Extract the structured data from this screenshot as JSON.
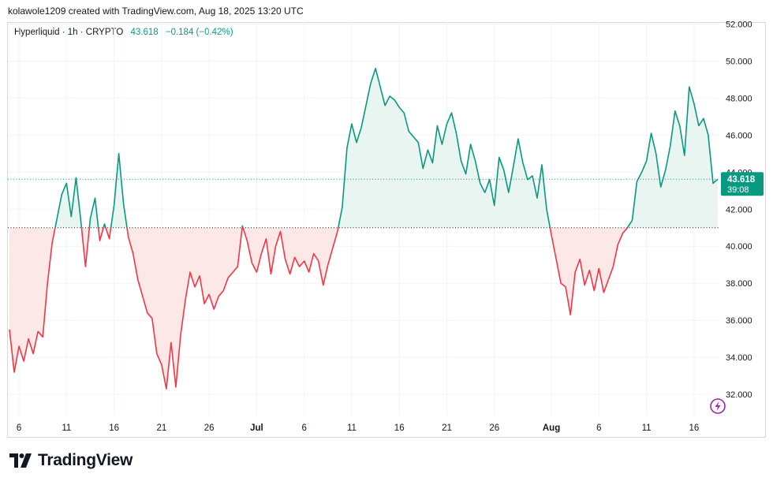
{
  "header": {
    "attribution": "kolawole1209 created with TradingView.com, Aug 18, 2025 13:20 UTC"
  },
  "legend": {
    "symbol": "Hyperliquid · 1h · CRYPTO",
    "price": "43.618",
    "change": "−0.184 (−0.42%)"
  },
  "last_price_tag": {
    "price": "43.618",
    "countdown": "39:08"
  },
  "brand": {
    "name": "TradingView"
  },
  "colors": {
    "up": "#089981",
    "down": "#f23645",
    "up_fill": "#e8f5f0",
    "down_fill": "#fde8e8"
  },
  "chart_data": {
    "type": "area",
    "title": "",
    "series_name": "",
    "baseline_value": 41.0,
    "last_value": 43.618,
    "ylim": [
      30.9,
      52.1
    ],
    "y_ticks": [
      32,
      34,
      36,
      38,
      40,
      42,
      44,
      46,
      48,
      50,
      52
    ],
    "y_tick_labels": [
      "32.000",
      "34.000",
      "36.000",
      "38.000",
      "40.000",
      "42.000",
      "44.000",
      "46.000",
      "48.000",
      "50.000",
      "52.000"
    ],
    "x_ticks": [
      {
        "label": "6",
        "bold": false
      },
      {
        "label": "11",
        "bold": false
      },
      {
        "label": "16",
        "bold": false
      },
      {
        "label": "21",
        "bold": false
      },
      {
        "label": "26",
        "bold": false
      },
      {
        "label": "Jul",
        "bold": true
      },
      {
        "label": "6",
        "bold": false
      },
      {
        "label": "11",
        "bold": false
      },
      {
        "label": "16",
        "bold": false
      },
      {
        "label": "21",
        "bold": false
      },
      {
        "label": "26",
        "bold": false
      },
      {
        "label": "Aug",
        "bold": true
      },
      {
        "label": "6",
        "bold": false
      },
      {
        "label": "11",
        "bold": false
      },
      {
        "label": "16",
        "bold": false
      }
    ],
    "x_range_days": [
      "Jun 5",
      "Aug 18"
    ],
    "points": [
      [
        "Jun 5 00:00",
        35.5
      ],
      [
        "Jun 5 12:00",
        33.2
      ],
      [
        "Jun 6 00:00",
        34.6
      ],
      [
        "Jun 6 12:00",
        33.8
      ],
      [
        "Jun 7 00:00",
        35.0
      ],
      [
        "Jun 7 12:00",
        34.2
      ],
      [
        "Jun 8 00:00",
        35.4
      ],
      [
        "Jun 8 12:00",
        35.1
      ],
      [
        "Jun 9 00:00",
        38.0
      ],
      [
        "Jun 9 12:00",
        40.2
      ],
      [
        "Jun 10 00:00",
        41.5
      ],
      [
        "Jun 10 12:00",
        42.8
      ],
      [
        "Jun 11 00:00",
        43.4
      ],
      [
        "Jun 11 12:00",
        41.6
      ],
      [
        "Jun 12 00:00",
        43.7
      ],
      [
        "Jun 12 12:00",
        41.4
      ],
      [
        "Jun 13 00:00",
        38.9
      ],
      [
        "Jun 13 12:00",
        41.5
      ],
      [
        "Jun 14 00:00",
        42.6
      ],
      [
        "Jun 14 12:00",
        40.3
      ],
      [
        "Jun 15 00:00",
        41.2
      ],
      [
        "Jun 15 12:00",
        40.4
      ],
      [
        "Jun 16 00:00",
        42.2
      ],
      [
        "Jun 16 12:00",
        45.0
      ],
      [
        "Jun 17 00:00",
        42.3
      ],
      [
        "Jun 17 12:00",
        40.5
      ],
      [
        "Jun 18 00:00",
        39.6
      ],
      [
        "Jun 18 12:00",
        38.2
      ],
      [
        "Jun 19 00:00",
        37.3
      ],
      [
        "Jun 19 12:00",
        36.4
      ],
      [
        "Jun 20 00:00",
        36.1
      ],
      [
        "Jun 20 12:00",
        34.2
      ],
      [
        "Jun 21 00:00",
        33.6
      ],
      [
        "Jun 21 12:00",
        32.3
      ],
      [
        "Jun 22 00:00",
        34.8
      ],
      [
        "Jun 22 12:00",
        32.4
      ],
      [
        "Jun 23 00:00",
        35.2
      ],
      [
        "Jun 23 12:00",
        37.1
      ],
      [
        "Jun 24 00:00",
        38.6
      ],
      [
        "Jun 24 12:00",
        37.8
      ],
      [
        "Jun 25 00:00",
        38.4
      ],
      [
        "Jun 25 12:00",
        36.9
      ],
      [
        "Jun 26 00:00",
        37.4
      ],
      [
        "Jun 26 12:00",
        36.6
      ],
      [
        "Jun 27 00:00",
        37.3
      ],
      [
        "Jun 27 12:00",
        37.6
      ],
      [
        "Jun 28 00:00",
        38.3
      ],
      [
        "Jun 28 12:00",
        38.6
      ],
      [
        "Jun 29 00:00",
        38.9
      ],
      [
        "Jun 29 12:00",
        41.1
      ],
      [
        "Jun 30 00:00",
        40.3
      ],
      [
        "Jun 30 12:00",
        39.1
      ],
      [
        "Jul 1 00:00",
        38.6
      ],
      [
        "Jul 1 12:00",
        39.6
      ],
      [
        "Jul 2 00:00",
        40.4
      ],
      [
        "Jul 2 12:00",
        38.5
      ],
      [
        "Jul 3 00:00",
        40.0
      ],
      [
        "Jul 3 12:00",
        40.8
      ],
      [
        "Jul 4 00:00",
        39.3
      ],
      [
        "Jul 4 12:00",
        38.5
      ],
      [
        "Jul 5 00:00",
        39.4
      ],
      [
        "Jul 5 12:00",
        38.9
      ],
      [
        "Jul 6 00:00",
        39.2
      ],
      [
        "Jul 6 12:00",
        38.6
      ],
      [
        "Jul 7 00:00",
        39.6
      ],
      [
        "Jul 7 12:00",
        39.2
      ],
      [
        "Jul 8 00:00",
        37.9
      ],
      [
        "Jul 8 12:00",
        39.0
      ],
      [
        "Jul 9 00:00",
        39.9
      ],
      [
        "Jul 9 12:00",
        40.8
      ],
      [
        "Jul 10 00:00",
        42.1
      ],
      [
        "Jul 10 12:00",
        45.3
      ],
      [
        "Jul 11 00:00",
        46.6
      ],
      [
        "Jul 11 12:00",
        45.6
      ],
      [
        "Jul 12 00:00",
        46.4
      ],
      [
        "Jul 12 12:00",
        47.6
      ],
      [
        "Jul 13 00:00",
        48.8
      ],
      [
        "Jul 13 12:00",
        49.6
      ],
      [
        "Jul 14 00:00",
        48.6
      ],
      [
        "Jul 14 12:00",
        47.6
      ],
      [
        "Jul 15 00:00",
        48.1
      ],
      [
        "Jul 15 12:00",
        47.9
      ],
      [
        "Jul 16 00:00",
        47.5
      ],
      [
        "Jul 16 12:00",
        47.2
      ],
      [
        "Jul 17 00:00",
        46.2
      ],
      [
        "Jul 17 12:00",
        45.9
      ],
      [
        "Jul 18 00:00",
        45.6
      ],
      [
        "Jul 18 12:00",
        44.2
      ],
      [
        "Jul 19 00:00",
        45.2
      ],
      [
        "Jul 19 12:00",
        44.5
      ],
      [
        "Jul 20 00:00",
        46.5
      ],
      [
        "Jul 20 12:00",
        45.5
      ],
      [
        "Jul 21 00:00",
        46.6
      ],
      [
        "Jul 21 12:00",
        47.2
      ],
      [
        "Jul 22 00:00",
        46.1
      ],
      [
        "Jul 22 12:00",
        44.6
      ],
      [
        "Jul 23 00:00",
        43.9
      ],
      [
        "Jul 23 12:00",
        45.5
      ],
      [
        "Jul 24 00:00",
        44.6
      ],
      [
        "Jul 24 12:00",
        43.4
      ],
      [
        "Jul 25 00:00",
        42.9
      ],
      [
        "Jul 25 12:00",
        43.6
      ],
      [
        "Jul 26 00:00",
        42.2
      ],
      [
        "Jul 26 12:00",
        44.8
      ],
      [
        "Jul 27 00:00",
        44.1
      ],
      [
        "Jul 27 12:00",
        42.9
      ],
      [
        "Jul 28 00:00",
        44.3
      ],
      [
        "Jul 28 12:00",
        45.8
      ],
      [
        "Jul 29 00:00",
        44.5
      ],
      [
        "Jul 29 12:00",
        43.6
      ],
      [
        "Jul 30 00:00",
        43.8
      ],
      [
        "Jul 30 12:00",
        42.6
      ],
      [
        "Jul 31 00:00",
        44.4
      ],
      [
        "Jul 31 12:00",
        42.0
      ],
      [
        "Aug 1 00:00",
        40.6
      ],
      [
        "Aug 1 12:00",
        39.3
      ],
      [
        "Aug 2 00:00",
        38.0
      ],
      [
        "Aug 2 12:00",
        37.8
      ],
      [
        "Aug 3 00:00",
        36.3
      ],
      [
        "Aug 3 12:00",
        38.6
      ],
      [
        "Aug 4 00:00",
        39.3
      ],
      [
        "Aug 4 12:00",
        37.9
      ],
      [
        "Aug 5 00:00",
        38.7
      ],
      [
        "Aug 5 12:00",
        37.6
      ],
      [
        "Aug 6 00:00",
        38.8
      ],
      [
        "Aug 6 12:00",
        37.5
      ],
      [
        "Aug 7 00:00",
        38.2
      ],
      [
        "Aug 7 12:00",
        38.9
      ],
      [
        "Aug 8 00:00",
        40.1
      ],
      [
        "Aug 8 12:00",
        40.7
      ],
      [
        "Aug 9 00:00",
        41.0
      ],
      [
        "Aug 9 12:00",
        41.4
      ],
      [
        "Aug 10 00:00",
        43.5
      ],
      [
        "Aug 10 12:00",
        44.0
      ],
      [
        "Aug 11 00:00",
        44.6
      ],
      [
        "Aug 11 12:00",
        46.1
      ],
      [
        "Aug 12 00:00",
        45.0
      ],
      [
        "Aug 12 12:00",
        43.2
      ],
      [
        "Aug 13 00:00",
        44.1
      ],
      [
        "Aug 13 12:00",
        45.4
      ],
      [
        "Aug 14 00:00",
        47.3
      ],
      [
        "Aug 14 12:00",
        46.5
      ],
      [
        "Aug 15 00:00",
        44.9
      ],
      [
        "Aug 15 12:00",
        48.6
      ],
      [
        "Aug 16 00:00",
        47.7
      ],
      [
        "Aug 16 12:00",
        46.5
      ],
      [
        "Aug 17 00:00",
        46.9
      ],
      [
        "Aug 17 12:00",
        46.0
      ],
      [
        "Aug 18 00:00",
        43.4
      ],
      [
        "Aug 18 12:00",
        43.618
      ]
    ]
  }
}
